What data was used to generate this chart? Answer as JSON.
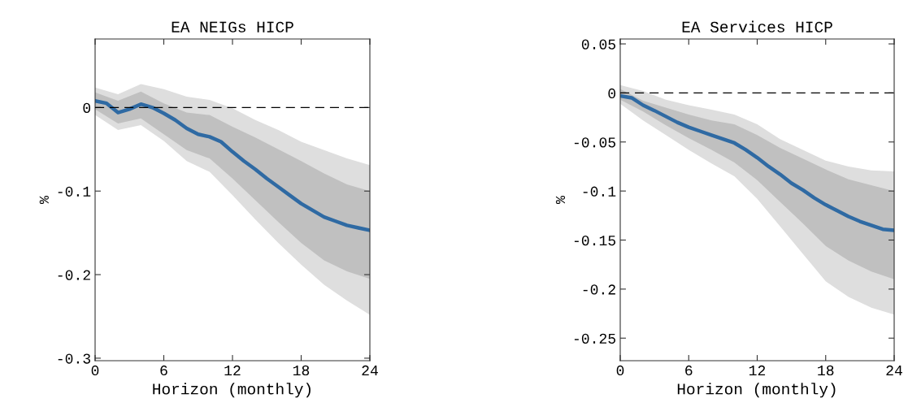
{
  "chart_data": [
    {
      "type": "line",
      "title": "EA NEIGs HICP",
      "xlabel": "Horizon (monthly)",
      "ylabel": "%",
      "xlim": [
        0,
        24
      ],
      "xticks": [
        0,
        6,
        12,
        18,
        24
      ],
      "ylim": [
        -0.303,
        0.082
      ],
      "yticks": [
        {
          "value": -0.3,
          "label": "-0.3"
        },
        {
          "value": -0.2,
          "label": "-0.2"
        },
        {
          "value": -0.1,
          "label": "-0.1"
        },
        0
      ],
      "grid": false,
      "legend": false,
      "ref_lines": [
        {
          "axis": "y",
          "value": 0,
          "color": "#000000",
          "line_style": "dashed"
        }
      ],
      "series": [
        {
          "color": "#dedede",
          "x": [
            0,
            2,
            4,
            6,
            8,
            10,
            12,
            14,
            16,
            18,
            20,
            22,
            24
          ],
          "values": [
            null,
            null,
            null,
            null,
            null,
            null,
            null,
            null,
            null,
            null,
            null,
            null,
            null
          ],
          "lower": [
            -0.009,
            -0.027,
            -0.021,
            -0.04,
            -0.064,
            -0.077,
            -0.105,
            -0.134,
            -0.162,
            -0.188,
            -0.212,
            -0.231,
            -0.248
          ],
          "upper": [
            0.024,
            0.016,
            0.028,
            0.022,
            0.013,
            0.009,
            -0.001,
            -0.015,
            -0.027,
            -0.041,
            -0.051,
            -0.061,
            -0.069
          ]
        },
        {
          "color": "#c0c0c0",
          "x": [
            0,
            2,
            4,
            6,
            8,
            10,
            12,
            14,
            16,
            18,
            20,
            22,
            24
          ],
          "values": [
            null,
            null,
            null,
            null,
            null,
            null,
            null,
            null,
            null,
            null,
            null,
            null,
            null
          ],
          "lower": [
            -0.002,
            -0.019,
            -0.013,
            -0.032,
            -0.051,
            -0.061,
            -0.085,
            -0.111,
            -0.137,
            -0.162,
            -0.183,
            -0.196,
            -0.205
          ],
          "upper": [
            0.018,
            0.008,
            0.019,
            0.005,
            -0.006,
            -0.009,
            -0.023,
            -0.036,
            -0.05,
            -0.064,
            -0.079,
            -0.092,
            -0.1
          ]
        },
        {
          "color": "#2f6aa3",
          "x": [
            0,
            1,
            2,
            3,
            4,
            5,
            6,
            7,
            8,
            9,
            10,
            11,
            12,
            13,
            14,
            15,
            16,
            17,
            18,
            19,
            20,
            21,
            22,
            23,
            24
          ],
          "values": [
            0.008,
            0.005,
            -0.006,
            -0.002,
            0.004,
            0,
            -0.007,
            -0.015,
            -0.025,
            -0.032,
            -0.035,
            -0.041,
            -0.053,
            -0.064,
            -0.074,
            -0.085,
            -0.095,
            -0.105,
            -0.115,
            -0.123,
            -0.131,
            -0.136,
            -0.141,
            -0.144,
            -0.147
          ]
        }
      ]
    },
    {
      "type": "line",
      "title": "EA Services HICP",
      "xlabel": "Horizon (monthly)",
      "ylabel": "%",
      "xlim": [
        0,
        24
      ],
      "xticks": [
        0,
        6,
        12,
        18,
        24
      ],
      "ylim": [
        -0.273,
        0.055
      ],
      "yticks": [
        {
          "value": -0.25,
          "label": "-0.25"
        },
        {
          "value": -0.2,
          "label": "-0.2"
        },
        {
          "value": -0.15,
          "label": "-0.15"
        },
        {
          "value": -0.1,
          "label": "-0.1"
        },
        {
          "value": -0.05,
          "label": "-0.05"
        },
        0,
        0.05
      ],
      "grid": false,
      "legend": false,
      "ref_lines": [
        {
          "axis": "y",
          "value": 0,
          "color": "#000000",
          "line_style": "dashed"
        }
      ],
      "series": [
        {
          "color": "#dedede",
          "x": [
            0,
            2,
            4,
            6,
            8,
            10,
            12,
            14,
            16,
            18,
            20,
            22,
            24
          ],
          "values": [
            null,
            null,
            null,
            null,
            null,
            null,
            null,
            null,
            null,
            null,
            null,
            null,
            null
          ],
          "lower": [
            -0.011,
            -0.028,
            -0.043,
            -0.058,
            -0.072,
            -0.085,
            -0.108,
            -0.136,
            -0.164,
            -0.192,
            -0.208,
            -0.219,
            -0.226
          ],
          "upper": [
            0.008,
            0.002,
            -0.007,
            -0.0125,
            -0.017,
            -0.022,
            -0.032,
            -0.047,
            -0.058,
            -0.069,
            -0.075,
            -0.079,
            -0.08
          ]
        },
        {
          "color": "#c0c0c0",
          "x": [
            0,
            2,
            4,
            6,
            8,
            10,
            12,
            14,
            16,
            18,
            20,
            22,
            24
          ],
          "values": [
            null,
            null,
            null,
            null,
            null,
            null,
            null,
            null,
            null,
            null,
            null,
            null,
            null
          ],
          "lower": [
            -0.007,
            -0.019,
            -0.033,
            -0.046,
            -0.058,
            -0.071,
            -0.089,
            -0.111,
            -0.133,
            -0.156,
            -0.171,
            -0.182,
            -0.19
          ],
          "upper": [
            0.004,
            -0.008,
            -0.015,
            -0.022,
            -0.028,
            -0.032,
            -0.043,
            -0.056,
            -0.067,
            -0.078,
            -0.088,
            -0.094,
            -0.1
          ]
        },
        {
          "color": "#2f6aa3",
          "x": [
            0,
            1,
            2,
            3,
            4,
            5,
            6,
            7,
            8,
            9,
            10,
            11,
            12,
            13,
            14,
            15,
            16,
            17,
            18,
            19,
            20,
            21,
            22,
            23,
            24
          ],
          "values": [
            -0.003,
            -0.005,
            -0.0125,
            -0.018,
            -0.024,
            -0.03,
            -0.035,
            -0.039,
            -0.043,
            -0.047,
            -0.051,
            -0.058,
            -0.066,
            -0.075,
            -0.083,
            -0.092,
            -0.099,
            -0.107,
            -0.114,
            -0.12,
            -0.126,
            -0.131,
            -0.135,
            -0.139,
            -0.14
          ]
        }
      ]
    }
  ]
}
